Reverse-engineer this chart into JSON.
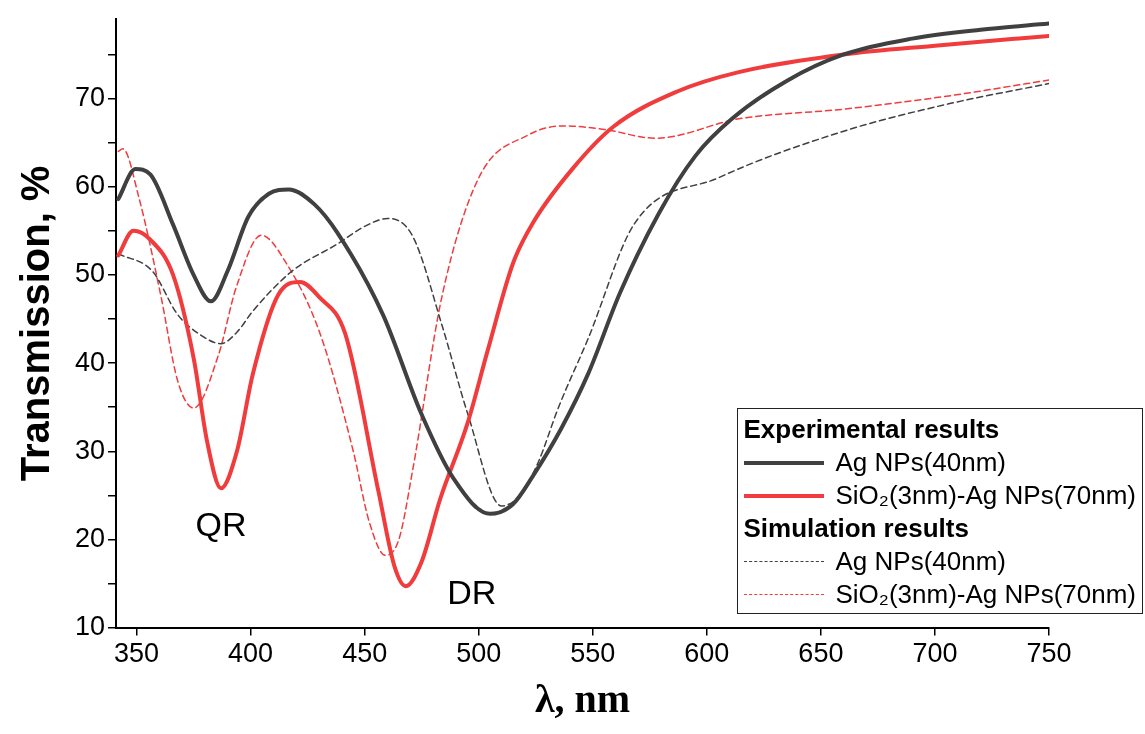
{
  "chart_data": {
    "type": "line",
    "xlabel": "λ, nm",
    "ylabel": "Transmission, %",
    "xlim": [
      341,
      750
    ],
    "xticks": [
      350,
      400,
      450,
      500,
      550,
      600,
      650,
      700,
      750
    ],
    "ylim": [
      10,
      79
    ],
    "yticks": [
      10,
      {
        "value": 15,
        "label": null
      },
      20,
      {
        "value": 25,
        "label": null
      },
      30,
      {
        "value": 35,
        "label": null
      },
      40,
      {
        "value": 45,
        "label": null
      },
      50,
      {
        "value": 55,
        "label": null
      },
      60,
      {
        "value": 65,
        "label": null
      },
      70,
      {
        "value": 75,
        "label": null
      }
    ],
    "grid": false,
    "legend": "bottom right",
    "marker": "none",
    "series": [
      {
        "name": "Ag NPs(40nm)",
        "color": "#404040",
        "line_style": "solid",
        "x": [
          342,
          349.5,
          356,
          366,
          375,
          382.6,
          390,
          399,
          408,
          416.7,
          428,
          438,
          458,
          474.6,
          489,
          505,
          515,
          524,
          536,
          548,
          562,
          579,
          595,
          611,
          635,
          660,
          690,
          720,
          750
        ],
        "values": [
          58.6,
          62,
          61.4,
          55.7,
          50,
          47,
          50.5,
          56.6,
          59.2,
          59.7,
          58,
          54.8,
          45.5,
          34.4,
          26.9,
          22.9,
          24,
          27.3,
          32.5,
          38.8,
          48,
          57,
          63.5,
          67.7,
          72,
          75,
          76.8,
          77.8,
          78.5
        ]
      },
      {
        "name": "SiO₂(3nm)-Ag NPs(70nm)",
        "color": "#f03c3c",
        "line_style": "solid",
        "x": [
          342,
          348.6,
          356,
          366,
          375,
          381,
          387,
          394,
          401,
          412,
          421.7,
          430,
          441.5,
          456,
          463,
          468,
          475,
          483,
          495,
          504,
          515,
          524,
          541,
          559,
          587,
          614,
          660,
          700,
          750
        ],
        "values": [
          52.2,
          55,
          54,
          50,
          40.6,
          31,
          25.8,
          30,
          38.8,
          47.7,
          49.2,
          47.5,
          43.3,
          25.5,
          17,
          14.7,
          17.5,
          24.5,
          33.1,
          41.5,
          51.3,
          56,
          62,
          66.8,
          70.8,
          73,
          75,
          76,
          77.1
        ]
      },
      {
        "name": "Ag NPs(40nm)",
        "color": "#404040",
        "line_style": "dashed",
        "x": [
          342,
          357,
          368,
          378,
          387,
          394,
          401,
          418,
          438,
          450,
          460,
          471,
          484,
          495,
          510,
          518,
          526,
          535,
          548,
          568,
          605,
          660,
          706,
          750
        ],
        "values": [
          52.4,
          50.4,
          45.5,
          43.2,
          42.2,
          43.5,
          45.9,
          50.4,
          53.5,
          55.5,
          56.4,
          54.4,
          44.2,
          34.4,
          23.8,
          25,
          28.7,
          35,
          42.8,
          55.7,
          61,
          66.3,
          69.4,
          71.7
        ]
      },
      {
        "name": "SiO₂(3nm)-Ag NPs(70nm)",
        "color": "#f03c3c",
        "line_style": "dashed",
        "x": [
          342,
          344,
          351,
          360.6,
          368,
          375,
          386,
          393.7,
          404.7,
          415.7,
          430.5,
          445,
          452,
          459,
          465,
          471,
          484,
          500,
          522,
          537,
          555,
          577.6,
          614,
          660,
          706,
          750
        ],
        "values": [
          64,
          64.3,
          58.8,
          47.7,
          38,
          34.9,
          41,
          48.6,
          54.5,
          51.3,
          43.3,
          30,
          22,
          18.2,
          20,
          27.8,
          47.7,
          61,
          65.9,
          66.9,
          66.5,
          65.5,
          67.7,
          68.8,
          70.3,
          72.1
        ]
      }
    ],
    "annotations": [
      {
        "text": "QR",
        "x": 387,
        "y": 25.8
      },
      {
        "text": "DR",
        "x": 468,
        "y": 14.7
      },
      "Experimental results",
      "Simulation results"
    ]
  }
}
